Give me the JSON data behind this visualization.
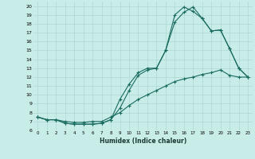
{
  "title": "",
  "xlabel": "Humidex (Indice chaleur)",
  "bg_color": "#c8ece8",
  "grid_color": "#aed8d2",
  "line_color": "#1a6b60",
  "xlim": [
    -0.5,
    23.5
  ],
  "ylim": [
    6,
    20.5
  ],
  "xticks": [
    0,
    1,
    2,
    3,
    4,
    5,
    6,
    7,
    8,
    9,
    10,
    11,
    12,
    13,
    14,
    15,
    16,
    17,
    18,
    19,
    20,
    21,
    22,
    23
  ],
  "yticks": [
    6,
    7,
    8,
    9,
    10,
    11,
    12,
    13,
    14,
    15,
    16,
    17,
    18,
    19,
    20
  ],
  "line1_x": [
    0,
    1,
    2,
    3,
    4,
    5,
    6,
    7,
    8,
    9,
    10,
    11,
    12,
    13,
    14,
    15,
    16,
    17,
    18,
    19,
    20,
    21,
    22,
    23
  ],
  "line1_y": [
    7.5,
    7.2,
    7.2,
    6.8,
    6.7,
    6.7,
    6.7,
    6.8,
    7.2,
    9.5,
    11.2,
    12.5,
    13.0,
    13.0,
    15.0,
    18.2,
    19.3,
    19.9,
    18.6,
    17.2,
    17.3,
    15.2,
    13.0,
    12.0
  ],
  "line2_x": [
    0,
    1,
    2,
    3,
    4,
    5,
    6,
    7,
    8,
    9,
    10,
    11,
    12,
    13,
    14,
    15,
    16,
    17,
    18,
    19,
    20,
    21,
    22,
    23
  ],
  "line2_y": [
    7.5,
    7.2,
    7.2,
    6.8,
    6.7,
    6.7,
    6.7,
    6.8,
    7.2,
    8.5,
    10.5,
    12.2,
    12.8,
    13.0,
    15.0,
    19.0,
    19.9,
    19.4,
    18.6,
    17.2,
    17.3,
    15.2,
    13.0,
    12.0
  ],
  "line3_x": [
    0,
    1,
    2,
    3,
    4,
    5,
    6,
    7,
    8,
    9,
    10,
    11,
    12,
    13,
    14,
    15,
    16,
    17,
    18,
    19,
    20,
    21,
    22,
    23
  ],
  "line3_y": [
    7.5,
    7.2,
    7.2,
    7.0,
    6.9,
    6.9,
    7.0,
    7.0,
    7.5,
    8.0,
    8.8,
    9.5,
    10.0,
    10.5,
    11.0,
    11.5,
    11.8,
    12.0,
    12.3,
    12.5,
    12.8,
    12.2,
    12.0,
    12.0
  ]
}
